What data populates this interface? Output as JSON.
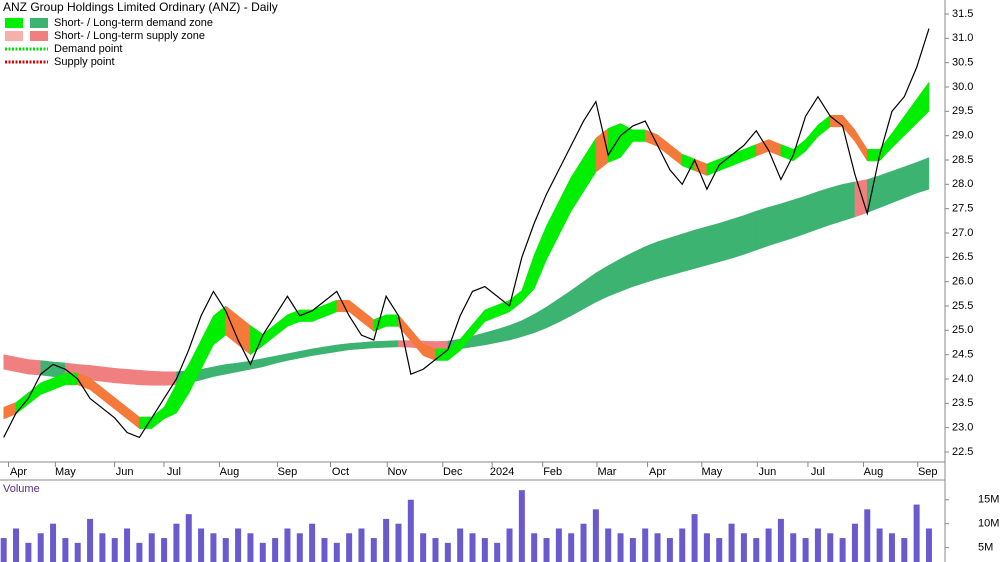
{
  "chart_data": {
    "type": "zone-line",
    "title": "ANZ Group Holdings Limited Ordinary (ANZ) - Daily",
    "legend": [
      {
        "label": "Short- / Long-term demand zone",
        "colors": [
          "#00ee00",
          "#3cb371"
        ]
      },
      {
        "label": "Short- / Long-term supply zone",
        "colors": [
          "#f5b0aa",
          "#f08080"
        ]
      },
      {
        "label": "Demand point",
        "colors": [
          "#00dd00"
        ]
      },
      {
        "label": "Supply point",
        "colors": [
          "#dd0000"
        ]
      }
    ],
    "x": [
      0,
      1,
      2,
      3,
      4,
      5,
      6,
      7,
      8,
      9,
      10,
      11,
      12,
      13,
      14,
      15,
      16,
      17,
      18,
      19,
      20,
      21,
      22,
      23,
      24,
      25,
      26,
      27,
      28,
      29,
      30,
      31,
      32,
      33,
      34,
      35,
      36,
      37,
      38,
      39,
      40,
      41,
      42,
      43,
      44,
      45,
      46,
      47,
      48,
      49,
      50,
      51,
      52,
      53,
      54,
      55,
      56,
      57,
      58,
      59,
      60,
      61,
      62,
      63,
      64,
      65,
      66,
      67,
      68,
      69,
      70,
      71,
      72,
      73,
      74,
      75
    ],
    "xlim": [
      -0.3,
      76.3
    ],
    "xticks": [
      {
        "value": 1.2,
        "label": "Apr"
      },
      {
        "value": 5,
        "label": "May"
      },
      {
        "value": 9.8,
        "label": "Jun"
      },
      {
        "value": 13.8,
        "label": "Jul"
      },
      {
        "value": 18.3,
        "label": "Aug"
      },
      {
        "value": 23,
        "label": "Sep"
      },
      {
        "value": 27.3,
        "label": "Oct"
      },
      {
        "value": 31.9,
        "label": "Nov"
      },
      {
        "value": 36.4,
        "label": "Dec"
      },
      {
        "value": 40.4,
        "label": "2024"
      },
      {
        "value": 44.5,
        "label": "Feb"
      },
      {
        "value": 48.9,
        "label": "Mar"
      },
      {
        "value": 53,
        "label": "Apr"
      },
      {
        "value": 57.4,
        "label": "May"
      },
      {
        "value": 61.9,
        "label": "Jun"
      },
      {
        "value": 66,
        "label": "Jul"
      },
      {
        "value": 70.5,
        "label": "Aug"
      },
      {
        "value": 74.9,
        "label": "Sep"
      }
    ],
    "ylim": [
      22.5,
      31.5
    ],
    "yticks": [
      22.5,
      {
        "value": 23,
        "label": "23.0"
      },
      23.5,
      {
        "value": 24,
        "label": "24.0"
      },
      24.5,
      {
        "value": 25,
        "label": "25.0"
      },
      25.5,
      {
        "value": 26,
        "label": "26.0"
      },
      26.5,
      {
        "value": 27,
        "label": "27.0"
      },
      27.5,
      {
        "value": 28,
        "label": "28.0"
      },
      28.5,
      {
        "value": 29,
        "label": "29.0"
      },
      29.5,
      {
        "value": 30,
        "label": "30.0"
      },
      30.5,
      {
        "value": 31,
        "label": "31.0"
      },
      31.5
    ],
    "price": {
      "color": "#000000",
      "values": [
        22.8,
        23.3,
        23.6,
        24.1,
        24.3,
        24.2,
        24.0,
        23.6,
        23.4,
        23.2,
        22.9,
        22.8,
        23.2,
        23.6,
        24.0,
        24.6,
        25.3,
        25.8,
        25.4,
        24.8,
        24.3,
        24.9,
        25.3,
        25.7,
        25.3,
        25.4,
        25.6,
        25.8,
        25.3,
        24.9,
        24.8,
        25.7,
        25.3,
        24.1,
        24.2,
        24.4,
        24.6,
        25.3,
        25.8,
        25.9,
        25.7,
        25.5,
        26.5,
        27.2,
        27.8,
        28.3,
        28.8,
        29.3,
        29.7,
        28.6,
        29.0,
        29.2,
        29.3,
        28.8,
        28.3,
        28.0,
        28.5,
        27.9,
        28.4,
        28.6,
        28.8,
        29.1,
        28.7,
        28.1,
        28.6,
        29.4,
        29.8,
        29.4,
        29.2,
        28.2,
        27.4,
        28.6,
        29.5,
        29.8,
        30.4,
        31.2
      ]
    },
    "short_zone": {
      "lower": [
        23.18,
        23.28,
        23.48,
        23.68,
        23.78,
        23.88,
        23.88,
        23.78,
        23.58,
        23.38,
        23.18,
        22.98,
        22.98,
        23.18,
        23.3,
        23.7,
        24.2,
        24.7,
        24.9,
        24.7,
        24.5,
        24.68,
        24.88,
        25.08,
        25.18,
        25.18,
        25.28,
        25.38,
        25.38,
        25.18,
        24.98,
        25.08,
        25.08,
        24.78,
        24.48,
        24.38,
        24.38,
        24.58,
        24.88,
        25.18,
        25.28,
        25.38,
        25.58,
        25.85,
        26.45,
        26.95,
        27.45,
        27.85,
        28.25,
        28.45,
        28.55,
        28.88,
        28.88,
        28.78,
        28.58,
        28.38,
        28.28,
        28.18,
        28.28,
        28.38,
        28.48,
        28.58,
        28.68,
        28.58,
        28.48,
        28.68,
        28.98,
        29.18,
        29.18,
        28.88,
        28.48,
        28.48,
        28.75,
        29.0,
        29.25,
        29.5
      ],
      "upper": [
        23.42,
        23.52,
        23.72,
        23.92,
        24.02,
        24.12,
        24.12,
        24.02,
        23.82,
        23.62,
        23.42,
        23.22,
        23.22,
        23.42,
        23.9,
        24.3,
        24.8,
        25.3,
        25.5,
        25.3,
        25.1,
        24.92,
        25.12,
        25.32,
        25.42,
        25.42,
        25.52,
        25.62,
        25.62,
        25.42,
        25.22,
        25.32,
        25.32,
        25.02,
        24.72,
        24.62,
        24.62,
        24.82,
        25.12,
        25.42,
        25.52,
        25.62,
        25.82,
        26.55,
        27.15,
        27.65,
        28.15,
        28.55,
        28.95,
        29.15,
        29.25,
        29.12,
        29.12,
        29.02,
        28.82,
        28.62,
        28.52,
        28.42,
        28.52,
        28.62,
        28.72,
        28.82,
        28.92,
        28.82,
        28.72,
        28.92,
        29.22,
        29.42,
        29.42,
        29.12,
        28.72,
        28.72,
        29.05,
        29.4,
        29.75,
        30.1
      ]
    },
    "long_zone": {
      "lower": [
        24.2,
        24.15,
        24.1,
        24.08,
        24.05,
        24.03,
        24.0,
        23.98,
        23.95,
        23.92,
        23.9,
        23.88,
        23.87,
        23.87,
        23.88,
        23.92,
        23.98,
        24.05,
        24.1,
        24.15,
        24.2,
        24.25,
        24.32,
        24.38,
        24.43,
        24.48,
        24.52,
        24.56,
        24.6,
        24.62,
        24.64,
        24.65,
        24.66,
        24.65,
        24.63,
        24.6,
        24.6,
        24.62,
        24.66,
        24.7,
        24.75,
        24.8,
        24.87,
        24.95,
        25.05,
        25.17,
        25.3,
        25.44,
        25.58,
        25.7,
        25.8,
        25.9,
        25.98,
        26.06,
        26.13,
        26.2,
        26.27,
        26.34,
        26.41,
        26.48,
        26.56,
        26.65,
        26.74,
        26.82,
        26.9,
        26.99,
        27.08,
        27.17,
        27.25,
        27.33,
        27.42,
        27.52,
        27.62,
        27.72,
        27.82,
        27.9
      ],
      "upper": [
        24.5,
        24.45,
        24.4,
        24.38,
        24.35,
        24.33,
        24.3,
        24.28,
        24.25,
        24.22,
        24.2,
        24.18,
        24.16,
        24.15,
        24.15,
        24.17,
        24.2,
        24.25,
        24.3,
        24.33,
        24.37,
        24.42,
        24.47,
        24.52,
        24.57,
        24.62,
        24.66,
        24.7,
        24.73,
        24.75,
        24.77,
        24.78,
        24.79,
        24.79,
        24.78,
        24.77,
        24.78,
        24.82,
        24.88,
        24.95,
        25.02,
        25.1,
        25.2,
        25.33,
        25.48,
        25.65,
        25.82,
        26.0,
        26.18,
        26.33,
        26.47,
        26.6,
        26.72,
        26.82,
        26.9,
        26.98,
        27.06,
        27.13,
        27.2,
        27.28,
        27.36,
        27.45,
        27.53,
        27.6,
        27.68,
        27.76,
        27.85,
        27.93,
        28.0,
        28.05,
        28.1,
        28.18,
        28.27,
        28.36,
        28.45,
        28.55
      ]
    },
    "volume": {
      "label": "Volume",
      "color": "#6a5acd",
      "ylim": [
        2,
        18.5
      ],
      "yticks": [
        {
          "value": 5,
          "label": "5M"
        },
        {
          "value": 10,
          "label": "10M"
        },
        {
          "value": 15,
          "label": "15M"
        }
      ],
      "values": [
        7,
        9,
        6,
        8,
        10,
        7,
        6,
        11,
        8,
        7,
        9,
        6,
        8,
        7,
        10,
        12,
        9,
        8,
        7,
        9,
        8,
        6,
        7,
        9,
        8,
        10,
        7,
        6,
        8,
        9,
        7,
        11,
        10,
        15,
        8,
        7,
        6,
        9,
        8,
        7,
        6,
        9,
        17,
        8,
        7,
        9,
        8,
        10,
        13,
        9,
        8,
        7,
        9,
        8,
        7,
        9,
        12,
        8,
        7,
        10,
        8,
        7,
        9,
        11,
        8,
        7,
        9,
        8,
        7,
        10,
        13,
        9,
        8,
        7,
        14,
        9
      ]
    }
  }
}
